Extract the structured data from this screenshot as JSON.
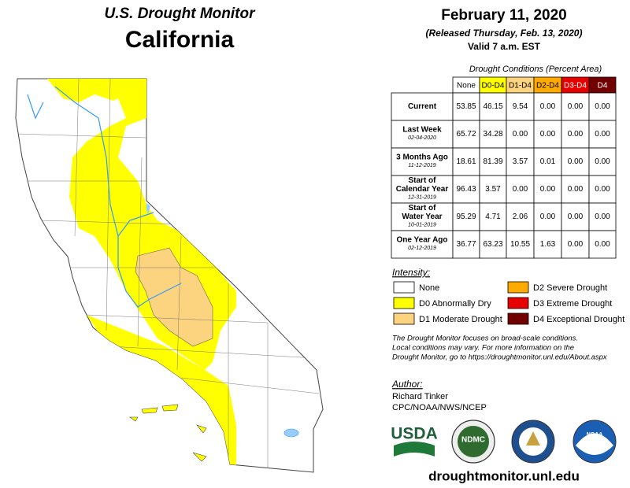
{
  "header": {
    "product": "U.S. Drought Monitor",
    "region": "California",
    "date": "February 11, 2020",
    "released": "(Released Thursday, Feb. 13, 2020)",
    "valid": "Valid 7 a.m. EST"
  },
  "table": {
    "caption": "Drought Conditions (Percent Area)",
    "columns": [
      {
        "label": "None",
        "color": "#ffffff",
        "text_color": "#000000"
      },
      {
        "label": "D0-D4",
        "color": "#ffff00",
        "text_color": "#000000"
      },
      {
        "label": "D1-D4",
        "color": "#fcd37f",
        "text_color": "#000000"
      },
      {
        "label": "D2-D4",
        "color": "#ffaa00",
        "text_color": "#000000"
      },
      {
        "label": "D3-D4",
        "color": "#e60000",
        "text_color": "#ffffff"
      },
      {
        "label": "D4",
        "color": "#730000",
        "text_color": "#ffffff"
      }
    ],
    "rows": [
      {
        "label": [
          "Current"
        ],
        "values": [
          "53.85",
          "46.15",
          "9.54",
          "0.00",
          "0.00",
          "0.00"
        ]
      },
      {
        "label": [
          "Last Week"
        ],
        "date": "02-04-2020",
        "values": [
          "65.72",
          "34.28",
          "0.00",
          "0.00",
          "0.00",
          "0.00"
        ]
      },
      {
        "label": [
          "3 Months Ago"
        ],
        "date": "11-12-2019",
        "values": [
          "18.61",
          "81.39",
          "3.57",
          "0.01",
          "0.00",
          "0.00"
        ]
      },
      {
        "label": [
          "Start of",
          "Calendar Year"
        ],
        "date": "12-31-2019",
        "values": [
          "96.43",
          "3.57",
          "0.00",
          "0.00",
          "0.00",
          "0.00"
        ]
      },
      {
        "label": [
          "Start of",
          "Water Year"
        ],
        "date": "10-01-2019",
        "values": [
          "95.29",
          "4.71",
          "2.06",
          "0.00",
          "0.00",
          "0.00"
        ]
      },
      {
        "label": [
          "One Year Ago"
        ],
        "date": "02-12-2019",
        "values": [
          "36.77",
          "63.23",
          "10.55",
          "1.63",
          "0.00",
          "0.00"
        ]
      }
    ]
  },
  "legend": {
    "title": "Intensity:",
    "items": [
      {
        "label": "None",
        "color": "#ffffff"
      },
      {
        "label": "D0 Abnormally Dry",
        "color": "#ffff00"
      },
      {
        "label": "D1 Moderate Drought",
        "color": "#fcd37f"
      },
      {
        "label": "D2 Severe Drought",
        "color": "#ffaa00"
      },
      {
        "label": "D3 Extreme Drought",
        "color": "#e60000"
      },
      {
        "label": "D4 Exceptional Drought",
        "color": "#730000"
      }
    ]
  },
  "note": [
    "The Drought Monitor focuses on broad-scale conditions.",
    "Local conditions may vary. For more information on the",
    "Drought Monitor, go to https://droughtmonitor.unl.edu/About.aspx"
  ],
  "author": {
    "title": "Author:",
    "name": "Richard Tinker",
    "org": "CPC/NOAA/NWS/NCEP"
  },
  "logos": [
    "USDA",
    "NDMC",
    "NOAA"
  ],
  "footer": {
    "url": "droughtmonitor.unl.edu"
  }
}
